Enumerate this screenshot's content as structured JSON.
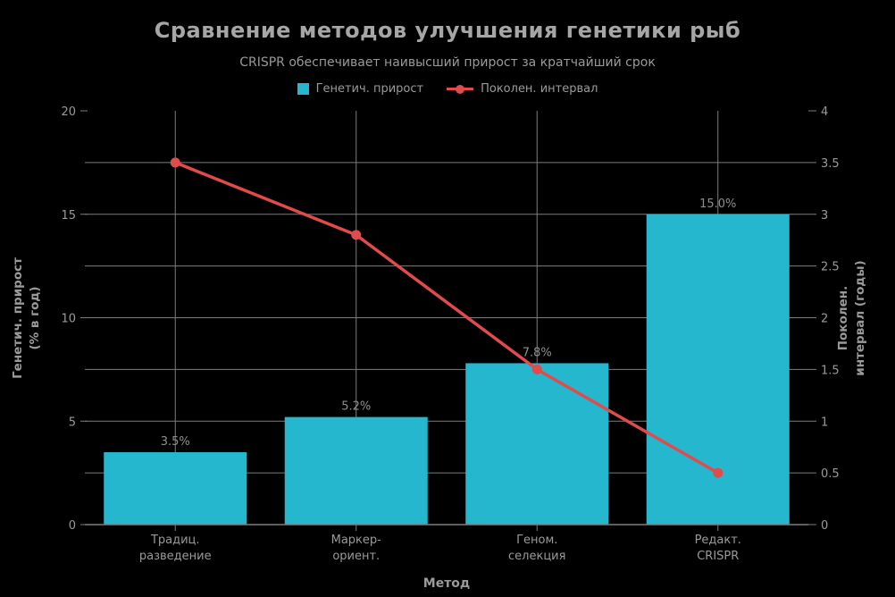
{
  "title": "Сравнение методов улучшения генетики рыб",
  "subtitle": "CRISPR обеспечивает наивысший прирост за кратчайший срок",
  "colors": {
    "background": "#000000",
    "bar": "#25b7cd",
    "line": "#e14b4b",
    "grid": "#7d7d7d",
    "axis_text": "#9a9a9a",
    "title_text": "#a6a6a6",
    "bar_label_text": "#8f8f8f"
  },
  "chart_data": {
    "type": "combo",
    "categories": [
      "Традиц.\nразведение",
      "Маркер-\nориент.",
      "Геном.\nселекция",
      "Редакт.\nCRISPR"
    ],
    "series": [
      {
        "name": "Генетич. прирост",
        "type": "bar",
        "axis": "left",
        "color": "#25b7cd",
        "values": [
          3.5,
          5.2,
          7.8,
          15.0
        ],
        "labels": [
          "3.5%",
          "5.2%",
          "7.8%",
          "15.0%"
        ]
      },
      {
        "name": "Поколен. интервал",
        "type": "line",
        "axis": "right",
        "color": "#e14b4b",
        "values": [
          3.5,
          2.8,
          1.5,
          0.5
        ]
      }
    ],
    "x_axis": {
      "title": "Метод"
    },
    "left_axis": {
      "title": "Генетич. прирост\n(% в год)",
      "min": 0,
      "max": 20,
      "ticks": [
        0,
        5,
        10,
        15,
        20
      ],
      "grid_interval": 2.5
    },
    "right_axis": {
      "title": "Поколен.\nинтервал (годы)",
      "min": 0,
      "max": 4,
      "ticks": [
        0,
        0.5,
        1,
        1.5,
        2,
        2.5,
        3,
        3.5,
        4
      ]
    },
    "grid": true,
    "legend_position": "top-center"
  }
}
